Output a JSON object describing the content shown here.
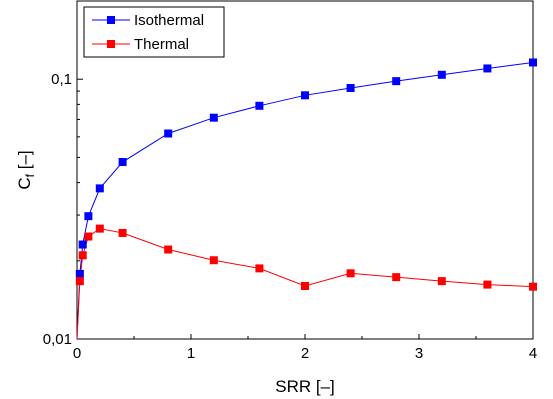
{
  "chart_data": {
    "type": "line",
    "xlabel": "SRR [–]",
    "ylabel_main": "C",
    "ylabel_sub": "f",
    "ylabel_unit": " [–]",
    "yscale": "log",
    "xlim": [
      0,
      4
    ],
    "ylim": [
      0.01,
      0.2
    ],
    "x_ticks": [
      0,
      1,
      2,
      3,
      4
    ],
    "x_tick_labels": [
      "0",
      "1",
      "2",
      "3",
      "4"
    ],
    "y_ticks": [
      0.01,
      0.1
    ],
    "y_tick_labels": [
      "0,01",
      "0,1"
    ],
    "grid": false,
    "legend_position": "top-left",
    "series": [
      {
        "name": "Isothermal",
        "color": "#0000ff",
        "x": [
          0.0,
          0.025,
          0.05,
          0.1,
          0.2,
          0.4,
          0.8,
          1.2,
          1.6,
          2.0,
          2.4,
          2.8,
          3.2,
          3.6,
          4.0
        ],
        "y": [
          0.0,
          0.0178,
          0.0231,
          0.0297,
          0.038,
          0.048,
          0.0618,
          0.0711,
          0.079,
          0.0867,
          0.0925,
          0.0983,
          0.104,
          0.11,
          0.116
        ]
      },
      {
        "name": "Thermal",
        "color": "#ff0000",
        "x": [
          0.0,
          0.025,
          0.05,
          0.1,
          0.2,
          0.4,
          0.8,
          1.2,
          1.6,
          2.0,
          2.4,
          2.8,
          3.2,
          3.6,
          4.0
        ],
        "y": [
          0.0,
          0.0167,
          0.021,
          0.0248,
          0.0266,
          0.0256,
          0.0221,
          0.0201,
          0.0187,
          0.016,
          0.0179,
          0.0173,
          0.0167,
          0.0162,
          0.0159
        ]
      }
    ]
  }
}
